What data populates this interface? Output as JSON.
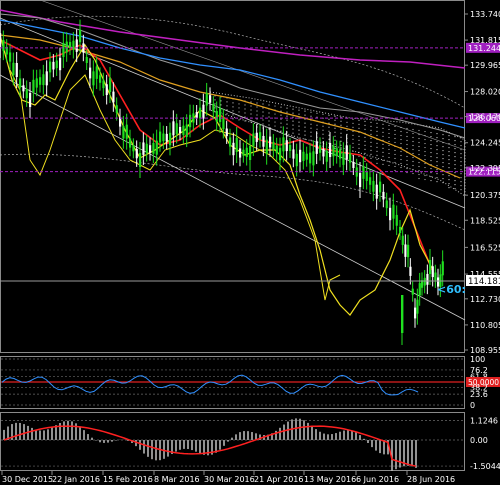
{
  "main": {
    "price_labels": [
      "133.740",
      "131.815",
      "129.965",
      "128.020",
      "126.170",
      "124.245",
      "122.395",
      "120.375",
      "118.525",
      "116.525",
      "114.555",
      "112.730",
      "110.805",
      "108.955"
    ],
    "levels": [
      {
        "value": "131.244",
        "color": "#a020c0"
      },
      {
        "value": "126.060",
        "color": "#a020c0"
      },
      {
        "value": "122.115",
        "color": "#a020c0"
      }
    ],
    "current_price": "114.181",
    "cycle_label": "<60:"
  },
  "oscillator": {
    "labels": [
      "100",
      "76.2",
      "61.8",
      "50.0000",
      "38.2",
      "23.6",
      "0"
    ],
    "red_label_color": "#e02020"
  },
  "macd": {
    "labels": [
      "1.1246",
      "0.00",
      "-1.5044"
    ]
  },
  "dates": [
    "30 Dec 2015",
    "22 Jan 2016",
    "15 Feb 2016",
    "8 Mar 2016",
    "30 Mar 2016",
    "21 Apr 2016",
    "13 May 2016",
    "6 Jun 2016",
    "28 Jun 2016"
  ],
  "colors": {
    "bullish": "#20e020",
    "bearish": "#ffffff",
    "ma_red": "#ff2020",
    "ma_yellow": "#f0e020",
    "ma_blue": "#3090ff",
    "ma_orange": "#e0a020",
    "ma_magenta": "#c020c0",
    "cloud": "#c0c0c0"
  }
}
